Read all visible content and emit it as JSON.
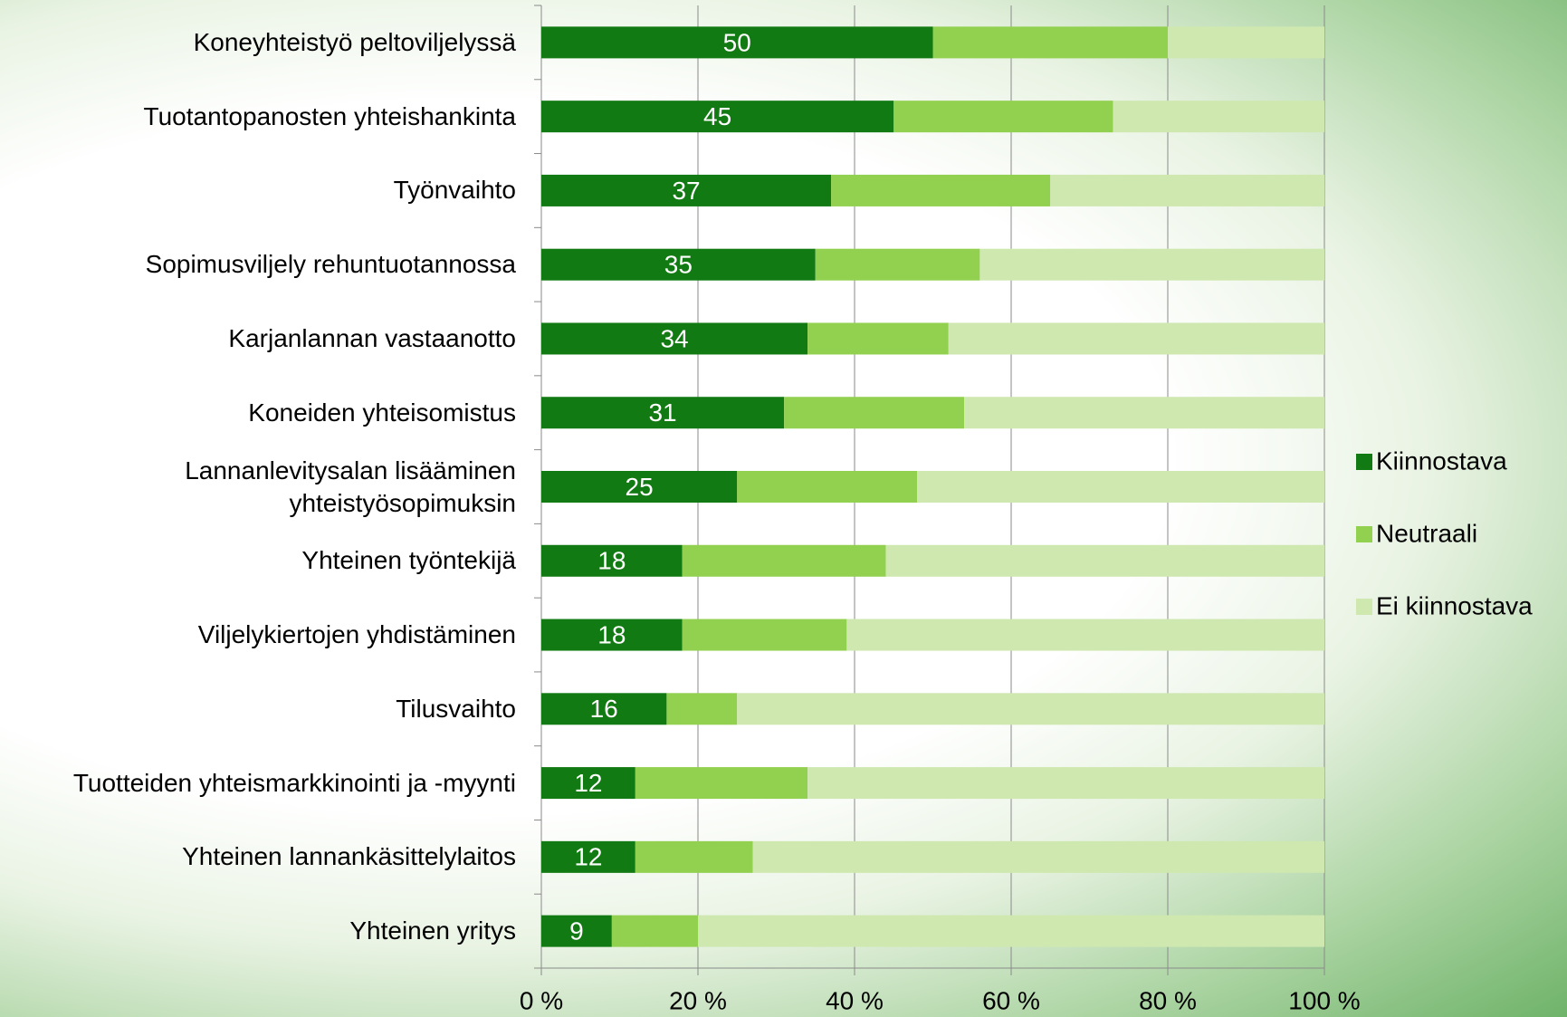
{
  "chart_data": {
    "type": "stacked_barh",
    "categories": [
      "Koneyhteistyö peltoviljelyssä",
      "Tuotantopanosten yhteishankinta",
      "Työnvaihto",
      "Sopimusviljely rehuntuotannossa",
      "Karjanlannan vastaanotto",
      "Koneiden yhteisomistus ",
      "Lannanlevitysalan lisääminen\nyhteistyösopimuksin",
      "Yhteinen työntekijä",
      "Viljelykiertojen yhdistäminen",
      "Tilusvaihto",
      "Tuotteiden yhteismarkkinointi ja -myynti",
      "Yhteinen lannankäsittelylaitos",
      "Yhteinen yritys"
    ],
    "series": [
      {
        "name": "Kiinnostava",
        "color": "#127a12",
        "values": [
          50,
          45,
          37,
          35,
          34,
          31,
          25,
          18,
          18,
          16,
          12,
          12,
          9
        ],
        "data_labels": true
      },
      {
        "name": "Neutraali",
        "color": "#92d050",
        "values": [
          30,
          28,
          28,
          21,
          18,
          23,
          23,
          26,
          21,
          9,
          22,
          15,
          11
        ]
      },
      {
        "name": "Ei kiinnostava",
        "color": "#cfe8b0",
        "values": [
          20,
          27,
          35,
          44,
          48,
          46,
          52,
          56,
          61,
          75,
          66,
          73,
          80
        ]
      }
    ],
    "xlim": [
      0,
      100
    ],
    "xticks": [
      {
        "value": 0,
        "label": "0 %"
      },
      {
        "value": 20,
        "label": "20 %"
      },
      {
        "value": 40,
        "label": "40 %"
      },
      {
        "value": 60,
        "label": "60 %"
      },
      {
        "value": 80,
        "label": "80 %"
      },
      {
        "value": 100,
        "label": "100 %"
      }
    ],
    "grid": true,
    "legend": "right"
  }
}
